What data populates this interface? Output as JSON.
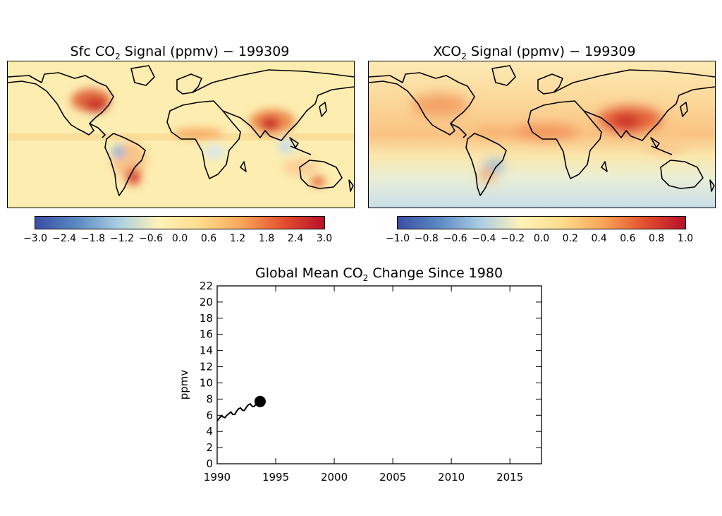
{
  "panels": {
    "sfc": {
      "title_pre": "Sfc CO",
      "title_sub": "2",
      "title_post": " Signal (ppmv) − 199309",
      "cbar_ticks": [
        "−3.0",
        "−2.4",
        "−1.8",
        "−1.2",
        "−0.6",
        "0.0",
        "0.6",
        "1.2",
        "1.8",
        "2.4",
        "3.0"
      ]
    },
    "xco2": {
      "title_pre": "XCO",
      "title_sub": "2",
      "title_post": " Signal (ppmv) − 199309",
      "cbar_ticks": [
        "−1.0",
        "−0.8",
        "−0.6",
        "−0.4",
        "−0.2",
        "0.0",
        "0.2",
        "0.4",
        "0.6",
        "0.8",
        "1.0"
      ]
    }
  },
  "colors": {
    "cbar_stops": [
      "#3a4fa3",
      "#5b88c2",
      "#a9cde3",
      "#fff3b8",
      "#fddc8c",
      "#f8a559",
      "#e4502f",
      "#b7102a"
    ],
    "map_bg": "#fdedb0",
    "coast": "#000000"
  },
  "chart_data": {
    "type": "line",
    "title_pre": "Global Mean CO",
    "title_sub": "2",
    "title_post": " Change Since 1980",
    "ylabel": "ppmv",
    "xlim": [
      1990,
      2017.7
    ],
    "ylim": [
      0,
      22
    ],
    "xticks": [
      1990,
      1995,
      2000,
      2005,
      2010,
      2015
    ],
    "yticks": [
      0,
      2,
      4,
      6,
      8,
      10,
      12,
      14,
      16,
      18,
      20,
      22
    ],
    "series": [
      {
        "x": [
          1990.0,
          1990.17,
          1990.33,
          1990.5,
          1990.67,
          1990.83,
          1991.0,
          1991.17,
          1991.33,
          1991.5,
          1991.67,
          1991.83,
          1992.0,
          1992.17,
          1992.33,
          1992.5,
          1992.67,
          1992.83,
          1993.0,
          1993.17,
          1993.33,
          1993.5,
          1993.67
        ],
        "y": [
          5.3,
          5.6,
          5.9,
          5.8,
          5.7,
          6.0,
          6.2,
          6.4,
          6.1,
          6.1,
          6.5,
          6.8,
          6.9,
          6.6,
          6.6,
          7.0,
          7.3,
          7.4,
          7.1,
          7.1,
          7.4,
          7.6,
          7.7
        ]
      }
    ],
    "current_point": {
      "x": 1993.67,
      "y": 7.7
    }
  }
}
